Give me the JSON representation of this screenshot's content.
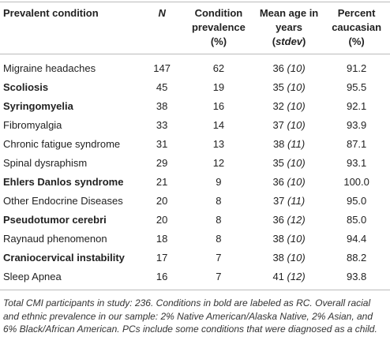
{
  "table": {
    "header": [
      [
        "Prevalent condition"
      ],
      [
        {
          "i": "N"
        }
      ],
      [
        "Condition",
        "prevalence",
        "(%)"
      ],
      [
        "Mean age in",
        "years (",
        {
          "i": "stdev"
        },
        ")"
      ],
      [
        "Percent",
        "caucasian",
        "(%)"
      ]
    ],
    "rows": [
      {
        "name": "Migraine headaches",
        "bold": false,
        "n": 147,
        "prev": 62,
        "age": 36,
        "sd": "(10)",
        "pct": "91.2"
      },
      {
        "name": "Scoliosis",
        "bold": true,
        "n": 45,
        "prev": 19,
        "age": 35,
        "sd": "(10)",
        "pct": "95.5"
      },
      {
        "name": "Syringomyelia",
        "bold": true,
        "n": 38,
        "prev": 16,
        "age": 32,
        "sd": "(10)",
        "pct": "92.1"
      },
      {
        "name": "Fibromyalgia",
        "bold": false,
        "n": 33,
        "prev": 14,
        "age": 37,
        "sd": "(10)",
        "pct": "93.9"
      },
      {
        "name": "Chronic fatigue syndrome",
        "bold": false,
        "n": 31,
        "prev": 13,
        "age": 38,
        "sd": "(11)",
        "pct": "87.1"
      },
      {
        "name": "Spinal dysraphism",
        "bold": false,
        "n": 29,
        "prev": 12,
        "age": 35,
        "sd": "(10)",
        "pct": "93.1"
      },
      {
        "name": "Ehlers Danlos syndrome",
        "bold": true,
        "n": 21,
        "prev": 9,
        "age": 36,
        "sd": "(10)",
        "pct": "100.0"
      },
      {
        "name": "Other Endocrine Diseases",
        "bold": false,
        "n": 20,
        "prev": 8,
        "age": 37,
        "sd": "(11)",
        "pct": "95.0"
      },
      {
        "name": "Pseudotumor cerebri",
        "bold": true,
        "n": 20,
        "prev": 8,
        "age": 36,
        "sd": "(12)",
        "pct": "85.0"
      },
      {
        "name": "Raynaud phenomenon",
        "bold": false,
        "n": 18,
        "prev": 8,
        "age": 38,
        "sd": "(10)",
        "pct": "94.4"
      },
      {
        "name": "Craniocervical instability",
        "bold": true,
        "n": 17,
        "prev": 7,
        "age": 38,
        "sd": "(10)",
        "pct": "88.2"
      },
      {
        "name": "Sleep Apnea",
        "bold": false,
        "n": 16,
        "prev": 7,
        "age": 41,
        "sd": "(12)",
        "pct": "93.8"
      }
    ],
    "footnote": "Total CMI participants in study: 236. Conditions in bold are labeled as RC. Overall racial and ethnic prevalence in our sample: 2% Native American/Alaska Native, 2% Asian, and 6% Black/African American. PCs include some conditions that were diagnosed as a child."
  }
}
